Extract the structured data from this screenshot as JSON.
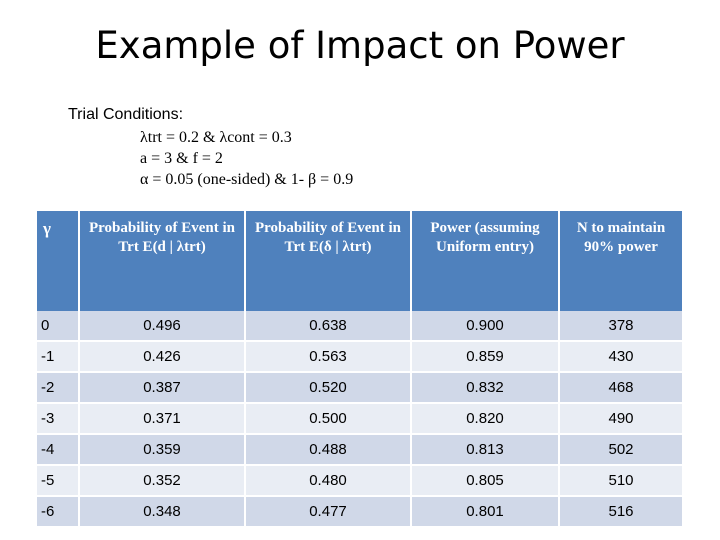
{
  "title": "Example of Impact on Power",
  "conditions": {
    "heading": "Trial Conditions:",
    "line1": "λtrt = 0.2  &  λcont = 0.3",
    "line2": "a = 3  &  f = 2",
    "line3": "α = 0.05 (one-sided)  &  1- β = 0.9"
  },
  "table": {
    "headers": [
      "γ",
      "Probability of Event in Trt E(d | λtrt)",
      "Probability of Event in Trt E(δ | λtrt)",
      "Power (assuming Uniform entry)",
      "N to maintain 90% power"
    ],
    "rows": [
      [
        "0",
        "0.496",
        "0.638",
        "0.900",
        "378"
      ],
      [
        "-1",
        "0.426",
        "0.563",
        "0.859",
        "430"
      ],
      [
        "-2",
        "0.387",
        "0.520",
        "0.832",
        "468"
      ],
      [
        "-3",
        "0.371",
        "0.500",
        "0.820",
        "490"
      ],
      [
        "-4",
        "0.359",
        "0.488",
        "0.813",
        "502"
      ],
      [
        "-5",
        "0.352",
        "0.480",
        "0.805",
        "510"
      ],
      [
        "-6",
        "0.348",
        "0.477",
        "0.801",
        "516"
      ]
    ]
  }
}
